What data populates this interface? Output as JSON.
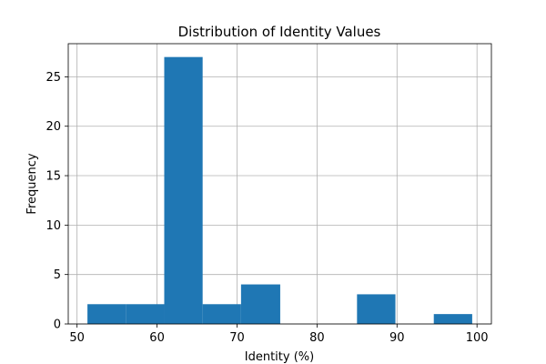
{
  "chart_data": {
    "type": "bar",
    "title": "Distribution of Identity Values",
    "xlabel": "Identity (%)",
    "ylabel": "Frequency",
    "bins": [
      {
        "x0": 51.3,
        "x1": 56.1,
        "count": 2
      },
      {
        "x0": 56.1,
        "x1": 60.9,
        "count": 2
      },
      {
        "x0": 60.9,
        "x1": 65.7,
        "count": 27
      },
      {
        "x0": 65.7,
        "x1": 70.5,
        "count": 2
      },
      {
        "x0": 70.5,
        "x1": 75.4,
        "count": 4
      },
      {
        "x0": 75.4,
        "x1": 80.2,
        "count": 0
      },
      {
        "x0": 80.2,
        "x1": 85.0,
        "count": 0
      },
      {
        "x0": 85.0,
        "x1": 89.8,
        "count": 3
      },
      {
        "x0": 89.8,
        "x1": 94.6,
        "count": 0
      },
      {
        "x0": 94.6,
        "x1": 99.4,
        "count": 1
      }
    ],
    "xlim": [
      48.9,
      101.8
    ],
    "ylim": [
      0,
      28.35
    ],
    "xticks": [
      50,
      60,
      70,
      80,
      90,
      100
    ],
    "yticks": [
      0,
      5,
      10,
      15,
      20,
      25
    ],
    "grid": true,
    "bar_color": "#1f77b4"
  }
}
